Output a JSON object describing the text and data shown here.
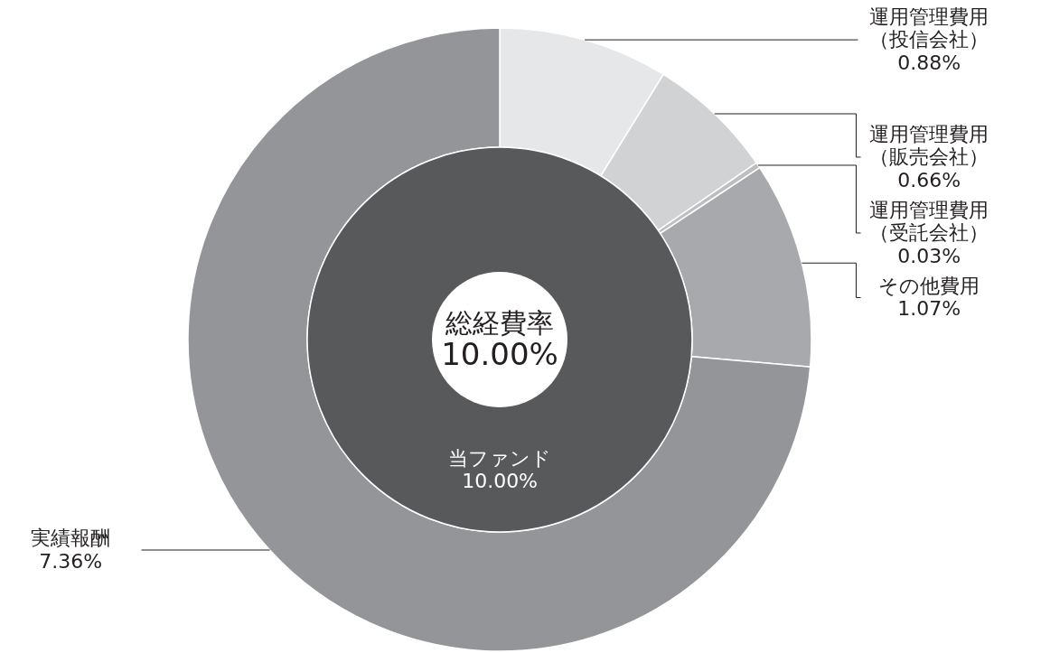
{
  "chart_data": [
    {
      "type": "donut",
      "categories": [
        "運用管理費用（投信会社）",
        "運用管理費用（販売会社）",
        "運用管理費用（受託会社）",
        "その他費用",
        "実績報酬"
      ],
      "values": [
        0.88,
        0.66,
        0.03,
        1.07,
        7.36
      ],
      "colors": [
        "#e6e7e8",
        "#d1d2d4",
        "#bcbec0",
        "#a7a9ac",
        "#939598"
      ],
      "value_labels": [
        "0.88%",
        "0.66%",
        "0.03%",
        "1.07%",
        "7.36%"
      ]
    },
    {
      "type": "pie",
      "title": "総経費率",
      "annotations": [
        "10.00%"
      ],
      "categories": [
        "当ファンド"
      ],
      "values": [
        10.0
      ],
      "colors": [
        "#58595b"
      ],
      "value_labels": [
        "10.00%"
      ]
    }
  ]
}
